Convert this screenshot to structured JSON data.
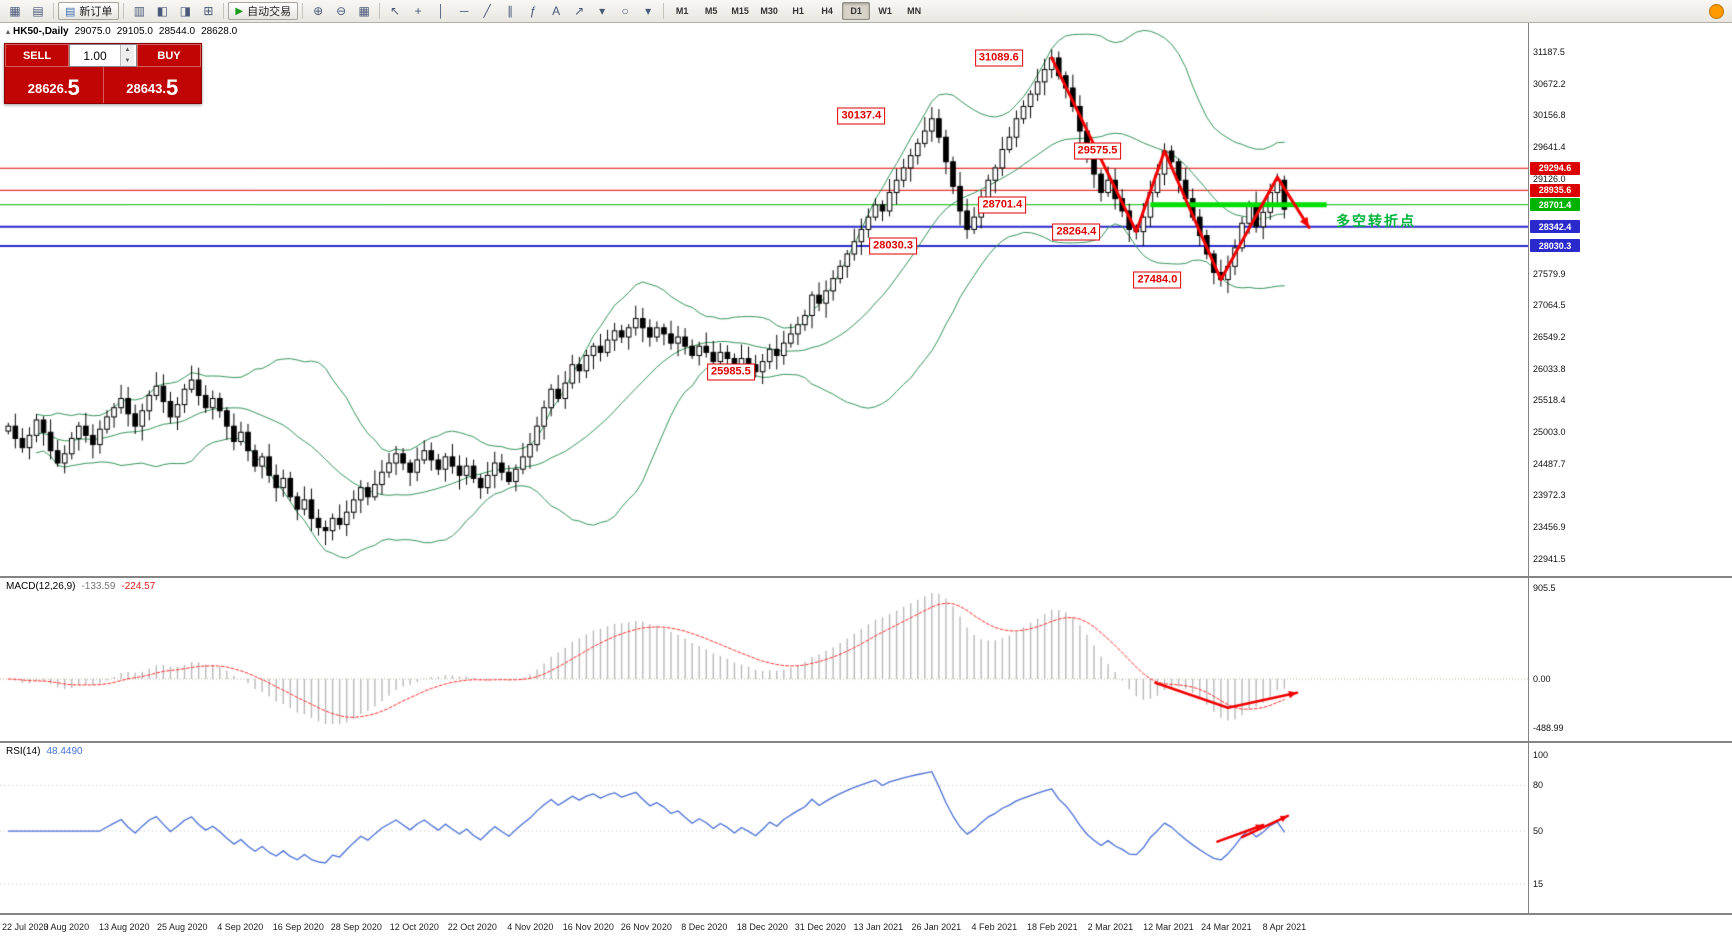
{
  "toolbar": {
    "left_icons": [
      {
        "name": "new-chart-icon",
        "glyph": "▦"
      },
      {
        "name": "chart-profiles-icon",
        "glyph": "▤"
      }
    ],
    "new_order_label": "新订单",
    "new_order_icon_glyph": "▤",
    "view_icons": [
      {
        "name": "market-watch-icon",
        "glyph": "▥"
      },
      {
        "name": "data-window-icon",
        "glyph": "◧"
      },
      {
        "name": "navigator-icon",
        "glyph": "◨"
      },
      {
        "name": "terminal-icon",
        "glyph": "⊞"
      }
    ],
    "auto_trading_label": "自动交易",
    "auto_trading_icon_glyph": "▶",
    "zoom_icons": [
      {
        "name": "zoom-in-icon",
        "glyph": "⊕"
      },
      {
        "name": "zoom-out-icon",
        "glyph": "⊖"
      },
      {
        "name": "tile-windows-icon",
        "glyph": "▦"
      }
    ],
    "draw_icons": [
      {
        "name": "cursor-icon",
        "glyph": "↖"
      },
      {
        "name": "crosshair-icon",
        "glyph": "+"
      },
      {
        "name": "vertical-line-icon",
        "glyph": "│"
      },
      {
        "name": "horizontal-line-icon",
        "glyph": "─"
      },
      {
        "name": "trendline-icon",
        "glyph": "╱"
      },
      {
        "name": "channel-icon",
        "glyph": "∥"
      },
      {
        "name": "fibonacci-icon",
        "glyph": "ƒ"
      },
      {
        "name": "text-icon",
        "glyph": "A"
      },
      {
        "name": "arrow-icon",
        "glyph": "↗"
      },
      {
        "name": "arrow-dropdown-icon",
        "glyph": "▾"
      },
      {
        "name": "shapes-icon",
        "glyph": "○"
      },
      {
        "name": "shapes-dropdown-icon",
        "glyph": "▾"
      }
    ],
    "timeframes": [
      "M1",
      "M5",
      "M15",
      "M30",
      "H1",
      "H4",
      "D1",
      "W1",
      "MN"
    ],
    "active_timeframe": "D1"
  },
  "trade_panel": {
    "sell_label": "SELL",
    "buy_label": "BUY",
    "volume": "1.00",
    "sell_price_main": "28626.",
    "sell_price_big": "5",
    "buy_price_main": "28643.",
    "buy_price_big": "5"
  },
  "chart": {
    "collapse_glyph": "▴",
    "symbol": "HK50-,Daily",
    "open": "29075.0",
    "high": "29105.0",
    "low": "28544.0",
    "close": "28628.0"
  },
  "indicators": {
    "macd": {
      "label": "MACD(12,26,9)",
      "value": "-133.59",
      "signal_value": "-224.57"
    },
    "rsi": {
      "label": "RSI(14)",
      "value": "48.4490"
    }
  },
  "chart_data": {
    "type": "candlestick",
    "symbol": "HK50-",
    "timeframe": "Daily",
    "closes": [
      25100,
      24900,
      24750,
      24950,
      25200,
      25000,
      24700,
      24500,
      24650,
      24900,
      25100,
      24950,
      24800,
      25050,
      25250,
      25400,
      25550,
      25300,
      25100,
      25350,
      25600,
      25750,
      25500,
      25250,
      25450,
      25700,
      25850,
      25600,
      25400,
      25550,
      25350,
      25100,
      24850,
      25000,
      24700,
      24450,
      24600,
      24300,
      24100,
      24250,
      23950,
      23750,
      23900,
      23600,
      23450,
      23400,
      23600,
      23500,
      23700,
      23900,
      24100,
      23950,
      24150,
      24350,
      24500,
      24650,
      24500,
      24350,
      24550,
      24700,
      24550,
      24400,
      24600,
      24450,
      24300,
      24450,
      24250,
      24100,
      24300,
      24500,
      24350,
      24200,
      24400,
      24600,
      24800,
      25100,
      25400,
      25700,
      25550,
      25800,
      26100,
      26000,
      26250,
      26400,
      26300,
      26500,
      26650,
      26550,
      26700,
      26850,
      26700,
      26550,
      26700,
      26600,
      26450,
      26550,
      26400,
      26250,
      26400,
      26300,
      26150,
      26300,
      26200,
      26050,
      26200,
      26100,
      25985,
      26150,
      26350,
      26250,
      26450,
      26600,
      26750,
      26900,
      27231,
      27100,
      27300,
      27500,
      27700,
      27900,
      28100,
      28300,
      28500,
      28700,
      28600,
      28900,
      29100,
      29300,
      29500,
      29700,
      29900,
      30100,
      29800,
      29400,
      29000,
      28600,
      28300,
      28500,
      28800,
      29100,
      29300,
      29600,
      29800,
      30100,
      30300,
      30500,
      30700,
      30900,
      31089,
      30800,
      30600,
      30300,
      29900,
      29500,
      29200,
      28900,
      29100,
      28800,
      28600,
      28300,
      28264,
      28500,
      28900,
      29200,
      29575,
      29400,
      29100,
      28800,
      28500,
      28200,
      27900,
      27600,
      27484,
      27700,
      28000,
      28400,
      28700,
      28342,
      28578,
      28900,
      29100,
      28628
    ],
    "bollinger": {
      "period": 20,
      "deviation": 2,
      "color": "#35935a"
    },
    "price_ticks": [
      31187.5,
      30672.2,
      30156.8,
      29641.4,
      29126.0,
      27579.9,
      27064.5,
      26549.2,
      26033.8,
      25518.4,
      25003.0,
      24487.7,
      23972.3,
      23456.9,
      22941.5
    ],
    "price_tags": [
      {
        "label": "29294.6",
        "p": 29294.6,
        "color": "#dd0000"
      },
      {
        "label": "28935.6",
        "p": 28935.6,
        "color": "#dd0000"
      },
      {
        "label": "28701.4",
        "p": 28701.4,
        "color": "#00b300"
      },
      {
        "label": "28342.4",
        "p": 28342.4,
        "color": "#2929cc"
      },
      {
        "label": "28030.3",
        "p": 28030.3,
        "color": "#2929cc"
      }
    ],
    "levels": [
      {
        "p": 29294.6,
        "color": "#e00000",
        "w": 1
      },
      {
        "p": 28935.6,
        "color": "#e00000",
        "w": 1
      },
      {
        "p": 28701.4,
        "color": "#00b300",
        "w": 1
      },
      {
        "p": 28342.4,
        "color": "#2929cc",
        "w": 2
      },
      {
        "p": 28030.3,
        "color": "#2929cc",
        "w": 2
      }
    ],
    "green_segment": {
      "p": 28701.4,
      "i1": 162,
      "i2": 187,
      "color": "#00dd00",
      "w": 5
    },
    "zigzag": {
      "color": "#f00000",
      "w": 3,
      "points": [
        {
          "i": 148,
          "p": 31089.6
        },
        {
          "i": 160,
          "p": 28264.4
        },
        {
          "i": 164,
          "p": 29575.5
        },
        {
          "i": 172,
          "p": 27484.0
        },
        {
          "i": 180,
          "p": 29150
        },
        {
          "i": 184.5,
          "p": 28330
        }
      ]
    },
    "callouts": [
      {
        "label": "31089.6",
        "i": 140.5,
        "p": 31089.6
      },
      {
        "label": "30137.4",
        "i": 121.0,
        "p": 30137.4
      },
      {
        "label": "29575.5",
        "i": 154.5,
        "p": 29575.5
      },
      {
        "label": "28701.4",
        "i": 141.0,
        "p": 28701.4
      },
      {
        "label": "28264.4",
        "i": 151.5,
        "p": 28264.4
      },
      {
        "label": "28030.3",
        "i": 125.5,
        "p": 28030.3
      },
      {
        "label": "27484.0",
        "i": 163.0,
        "p": 27484.0
      },
      {
        "label": "25985.5",
        "i": 102.5,
        "p": 25985.5
      }
    ],
    "note": {
      "text": "多空转折点",
      "i": 194,
      "p": 28430,
      "color": "#00b43c"
    },
    "date_labels": [
      "22 Jul 2020",
      "3 Aug 2020",
      "13 Aug 2020",
      "25 Aug 2020",
      "4 Sep 2020",
      "16 Sep 2020",
      "28 Sep 2020",
      "12 Oct 2020",
      "22 Oct 2020",
      "4 Nov 2020",
      "16 Nov 2020",
      "26 Nov 2020",
      "8 Dec 2020",
      "18 Dec 2020",
      "31 Dec 2020",
      "13 Jan 2021",
      "26 Jan 2021",
      "4 Feb 2021",
      "18 Feb 2021",
      "2 Mar 2021",
      "12 Mar 2021",
      "24 Mar 2021",
      "8 Apr 2021"
    ],
    "macd_axis": [
      {
        "label": "905.5",
        "v": 905.5
      },
      {
        "label": "0.00",
        "v": 0
      },
      {
        "label": "-488.99",
        "v": -488.99
      }
    ],
    "macd_arrow": {
      "color": "#f00000",
      "w": 2.5,
      "points": [
        {
          "i": 162.7,
          "v": -37
        },
        {
          "i": 173,
          "v": -288
        },
        {
          "i": 182.8,
          "v": -138
        }
      ]
    },
    "rsi_axis": [
      {
        "label": "100",
        "v": 100
      },
      {
        "label": "80",
        "v": 80
      },
      {
        "label": "50",
        "v": 50
      },
      {
        "label": "15",
        "v": 15
      }
    ],
    "rsi_levels": [
      80,
      50,
      15
    ],
    "rsi_arrows": [
      {
        "color": "#f00000",
        "w": 2.5,
        "points": [
          {
            "i": 171.5,
            "v": 43
          },
          {
            "i": 178,
            "v": 54
          }
        ]
      },
      {
        "color": "#f00000",
        "w": 2.5,
        "points": [
          {
            "i": 175,
            "v": 46
          },
          {
            "i": 181.5,
            "v": 60
          }
        ]
      }
    ]
  }
}
